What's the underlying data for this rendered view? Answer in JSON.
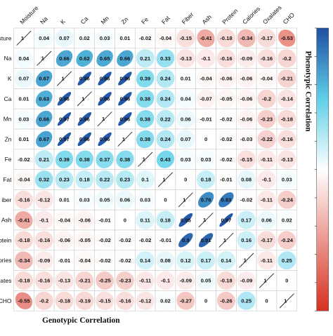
{
  "chart_data": {
    "type": "heatmap",
    "variables": [
      "Moisture",
      "Na",
      "K",
      "Ca",
      "Mn",
      "Zn",
      "Fe",
      "Fat",
      "Fiber",
      "Ash",
      "Protein",
      "Calories",
      "Oxalates",
      "CHO"
    ],
    "row_labels": [
      "isture",
      "Na",
      "K",
      "Ca",
      "Mn",
      "Zn",
      "Fe",
      "Fat",
      "iber",
      "Ash",
      "rotein",
      "ories",
      "ates",
      "CHO"
    ],
    "upper_title": "Phenotypic Correlation",
    "lower_title": "Genotypic Correlation",
    "color_scale": {
      "negative": "#d7301f",
      "zero": "#ffffff",
      "positive": "#1f4ea3",
      "mid_positive": "#5fd0e8",
      "range": [
        -1,
        1
      ]
    },
    "upper_triangle_phenotypic": [
      [
        "1",
        "0.04",
        "0.07",
        "0.02",
        "0.03",
        "0.01",
        "-0.02",
        "-0.04",
        "-0.15",
        "-0.41",
        "-0.18",
        "-0.34",
        "-0.17",
        "-0.53"
      ],
      [
        "",
        "1",
        "0.66",
        "0.62",
        "0.65",
        "0.66",
        "0.21",
        "0.33",
        "-0.13",
        "-0.1",
        "-0.16",
        "-0.09",
        "-0.16",
        "-0.2"
      ],
      [
        "",
        "",
        "1",
        "0.96",
        "0.96",
        "0.96",
        "0.39",
        "0.24",
        "0.01",
        "-0.04",
        "-0.06",
        "-0.06",
        "-0.04",
        "-0.21"
      ],
      [
        "",
        "",
        "",
        "1",
        "0.96",
        "0.96",
        "0.38",
        "0.24",
        "0.04",
        "-0.07",
        "-0.05",
        "-0.06",
        "-0.2",
        "-0.14"
      ],
      [
        "",
        "",
        "",
        "",
        "1",
        "0.96",
        "0.38",
        "0.22",
        "0.06",
        "-0.01",
        "-0.02",
        "-0.06",
        "-0.23",
        "-0.18"
      ],
      [
        "",
        "",
        "",
        "",
        "",
        "1",
        "0.38",
        "0.24",
        "0.07",
        "0",
        "-0.02",
        "-0.03",
        "-0.22",
        "-0.16"
      ],
      [
        "",
        "",
        "",
        "",
        "",
        "",
        "1",
        "0.43",
        "0.03",
        "0.03",
        "-0.02",
        "-0.15",
        "-0.11",
        "-0.13"
      ],
      [
        "",
        "",
        "",
        "",
        "",
        "",
        "",
        "1",
        "0",
        "0.18",
        "-0.01",
        "0.08",
        "-0.1",
        "0.03"
      ],
      [
        "",
        "",
        "",
        "",
        "",
        "",
        "",
        "",
        "1",
        "0.76",
        "0.83",
        "-0.02",
        "-0.11",
        "-0.24"
      ],
      [
        "",
        "",
        "",
        "",
        "",
        "",
        "",
        "",
        "",
        "1",
        "0.97",
        "0.17",
        "0.06",
        "0.02"
      ],
      [
        "",
        "",
        "",
        "",
        "",
        "",
        "",
        "",
        "",
        "",
        "1",
        "0.16",
        "-0.17",
        "-0.24"
      ],
      [
        "",
        "",
        "",
        "",
        "",
        "",
        "",
        "",
        "",
        "",
        "",
        "1",
        "-0.11",
        "0.25"
      ],
      [
        "",
        "",
        "",
        "",
        "",
        "",
        "",
        "",
        "",
        "",
        "",
        "",
        "1",
        "0"
      ],
      [
        "",
        "",
        "",
        "",
        "",
        "",
        "",
        "",
        "",
        "",
        "",
        "",
        "",
        "1"
      ]
    ],
    "lower_triangle_genotypic": [
      [
        "1",
        "",
        "",
        "",
        "",
        "",
        "",
        "",
        "",
        "",
        "",
        "",
        "",
        ""
      ],
      [
        "0.04",
        "1",
        "",
        "",
        "",
        "",
        "",
        "",
        "",
        "",
        "",
        "",
        "",
        ""
      ],
      [
        "0.07",
        "0.67",
        "1",
        "",
        "",
        "",
        "",
        "",
        "",
        "",
        "",
        "",
        "",
        ""
      ],
      [
        "0.01",
        "0.63",
        "0.96",
        "1",
        "",
        "",
        "",
        "",
        "",
        "",
        "",
        "",
        "",
        ""
      ],
      [
        "0.03",
        "0.66",
        "0.97",
        "0.96",
        "1",
        "",
        "",
        "",
        "",
        "",
        "",
        "",
        "",
        ""
      ],
      [
        "0.01",
        "0.67",
        "0.97",
        "0.96",
        "0.96",
        "1",
        "",
        "",
        "",
        "",
        "",
        "",
        "",
        ""
      ],
      [
        "-0.02",
        "0.21",
        "0.39",
        "0.38",
        "0.37",
        "0.38",
        "1",
        "",
        "",
        "",
        "",
        "",
        "",
        ""
      ],
      [
        "-0.04",
        "0.32",
        "0.23",
        "0.18",
        "0.22",
        "0.23",
        "0.1",
        "1",
        "",
        "",
        "",
        "",
        "",
        ""
      ],
      [
        "-0.16",
        "-0.12",
        "0.01",
        "0.03",
        "0.05",
        "0.06",
        "0.03",
        "0",
        "1",
        "",
        "",
        "",
        "",
        ""
      ],
      [
        "-0.41",
        "-0.1",
        "-0.04",
        "-0.06",
        "-0.01",
        "0",
        "0.11",
        "0.18",
        "0.95",
        "1",
        "",
        "",
        "",
        ""
      ],
      [
        "-0.18",
        "-0.16",
        "-0.06",
        "-0.05",
        "-0.02",
        "-0.02",
        "-0.02",
        "-0.01",
        "0.9",
        "0.91",
        "1",
        "",
        "",
        ""
      ],
      [
        "-0.34",
        "-0.09",
        "-0.01",
        "-0.04",
        "-0.02",
        "-0.02",
        "0.14",
        "0.08",
        "0.12",
        "0.17",
        "0.14",
        "1",
        "",
        ""
      ],
      [
        "-0.18",
        "-0.16",
        "-0.13",
        "-0.21",
        "-0.25",
        "-0.23",
        "-0.11",
        "-0.1",
        "-0.09",
        "0.05",
        "-0.18",
        "-0.09",
        "1",
        ""
      ],
      [
        "-0.55",
        "-0.2",
        "-0.18",
        "-0.19",
        "-0.15",
        "-0.16",
        "-0.12",
        "0.02",
        "-0.27",
        "0",
        "-0.26",
        "0.25",
        "0",
        "1"
      ]
    ]
  }
}
